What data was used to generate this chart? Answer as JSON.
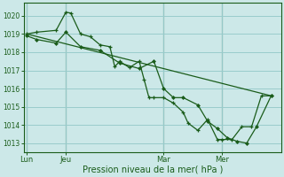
{
  "bg_color": "#cce8e8",
  "grid_color": "#99cccc",
  "line_color": "#1a5c1a",
  "xlabel": "Pression niveau de la mer( hPa )",
  "ylim": [
    1012.5,
    1020.7
  ],
  "yticks": [
    1013,
    1014,
    1015,
    1016,
    1017,
    1018,
    1019,
    1020
  ],
  "xtick_labels": [
    "Lun",
    "Jeu",
    "Mar",
    "Mer"
  ],
  "xtick_positions": [
    0,
    4,
    14,
    20
  ],
  "xlim": [
    -0.3,
    26
  ],
  "vline_positions": [
    0,
    4,
    14,
    20
  ],
  "series_main": {
    "x": [
      0,
      1,
      3,
      4,
      4.5,
      5.5,
      6.5,
      7.5,
      8.5,
      9,
      9.5,
      10.5,
      11.5,
      12,
      12.5,
      13,
      14,
      15,
      16,
      16.5,
      17.5,
      18.5,
      19.5,
      20,
      21,
      22,
      23,
      24,
      25
    ],
    "y": [
      1019.0,
      1019.1,
      1019.2,
      1020.2,
      1020.15,
      1019.0,
      1018.85,
      1018.4,
      1018.3,
      1017.2,
      1017.5,
      1017.15,
      1017.5,
      1016.5,
      1015.5,
      1015.5,
      1015.5,
      1015.2,
      1014.7,
      1014.1,
      1013.7,
      1014.3,
      1013.2,
      1013.2,
      1013.2,
      1013.9,
      1013.9,
      1015.6,
      1015.6
    ]
  },
  "series_curve": {
    "x": [
      0,
      1,
      3,
      4,
      5.5,
      7.5,
      9.5,
      11.5,
      13,
      14,
      15,
      16,
      17.5,
      18.5,
      19.5,
      20.5,
      21.5,
      22.5,
      23.5,
      25
    ],
    "y": [
      1018.9,
      1018.7,
      1018.5,
      1019.1,
      1018.3,
      1018.1,
      1017.4,
      1017.1,
      1017.5,
      1016.0,
      1015.5,
      1015.5,
      1015.1,
      1014.2,
      1013.8,
      1013.3,
      1013.1,
      1013.0,
      1013.9,
      1015.6
    ]
  },
  "series_straight": {
    "x": [
      0,
      25
    ],
    "y": [
      1019.0,
      1015.6
    ]
  }
}
